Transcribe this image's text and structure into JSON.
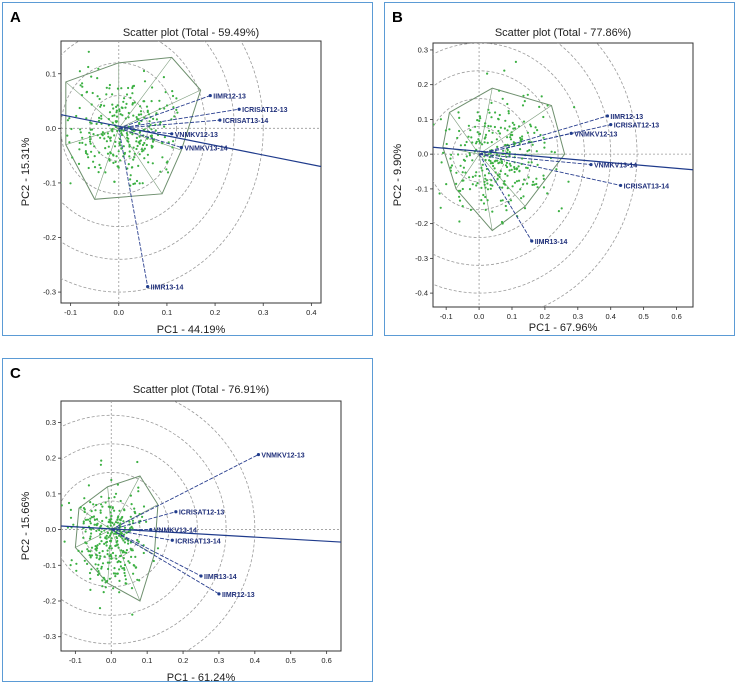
{
  "chart_data": [
    {
      "panel_label": "A",
      "type": "scatter",
      "title": "Scatter plot (Total - 59.49%)",
      "xlabel": "PC1 - 44.19%",
      "ylabel": "PC2 - 15.31%",
      "xlim": [
        -0.12,
        0.42
      ],
      "ylim": [
        -0.32,
        0.16
      ],
      "xticks": [
        "-0.1",
        "0.0",
        "0.1",
        "0.2",
        "0.3",
        "0.4"
      ],
      "yticks": [
        "0.1",
        "0.0",
        "-0.1",
        "-0.2",
        "-0.3"
      ],
      "xtick_values": [
        -0.1,
        0.0,
        0.1,
        0.2,
        0.3,
        0.4
      ],
      "ytick_values": [
        0.1,
        0.0,
        -0.1,
        -0.2,
        -0.3
      ],
      "vectors": [
        {
          "name": "IIMR12-13",
          "x": 0.19,
          "y": 0.06
        },
        {
          "name": "ICRISAT12-13",
          "x": 0.25,
          "y": 0.035
        },
        {
          "name": "ICRISAT13-14",
          "x": 0.21,
          "y": 0.015
        },
        {
          "name": "VNMKV12-13",
          "x": 0.11,
          "y": -0.01
        },
        {
          "name": "VNMKV13-14",
          "x": 0.13,
          "y": -0.035
        },
        {
          "name": "IIMR13-14",
          "x": 0.06,
          "y": -0.29
        }
      ],
      "axis_line": {
        "x1": -0.12,
        "y1": 0.025,
        "x2": 0.42,
        "y2": -0.07
      },
      "hull": [
        [
          -0.11,
          0.085
        ],
        [
          0.0,
          0.12
        ],
        [
          0.11,
          0.13
        ],
        [
          0.17,
          0.07
        ],
        [
          0.13,
          -0.04
        ],
        [
          0.09,
          -0.12
        ],
        [
          -0.05,
          -0.13
        ],
        [
          -0.11,
          -0.03
        ]
      ],
      "circle_radii": [
        0.06,
        0.12,
        0.18,
        0.24,
        0.3
      ]
    },
    {
      "panel_label": "B",
      "type": "scatter",
      "title": "Scatter plot (Total - 77.86%)",
      "xlabel": "PC1 - 67.96%",
      "ylabel": "PC2 - 9.90%",
      "xlim": [
        -0.14,
        0.65
      ],
      "ylim": [
        -0.44,
        0.32
      ],
      "xticks": [
        "-0.1",
        "0.0",
        "0.1",
        "0.2",
        "0.3",
        "0.4",
        "0.5",
        "0.6"
      ],
      "yticks": [
        "0.3",
        "0.2",
        "0.1",
        "0.0",
        "-0.1",
        "-0.2",
        "-0.3",
        "-0.4"
      ],
      "xtick_values": [
        -0.1,
        0.0,
        0.1,
        0.2,
        0.3,
        0.4,
        0.5,
        0.6
      ],
      "ytick_values": [
        0.3,
        0.2,
        0.1,
        0.0,
        -0.1,
        -0.2,
        -0.3,
        -0.4
      ],
      "vectors": [
        {
          "name": "IIMR12-13",
          "x": 0.39,
          "y": 0.11
        },
        {
          "name": "ICRISAT12-13",
          "x": 0.4,
          "y": 0.085
        },
        {
          "name": "VNMKV12-13",
          "x": 0.28,
          "y": 0.06
        },
        {
          "name": "VNMKV13-14",
          "x": 0.34,
          "y": -0.03
        },
        {
          "name": "ICRISAT13-14",
          "x": 0.43,
          "y": -0.09
        },
        {
          "name": "IIMR13-14",
          "x": 0.16,
          "y": -0.25
        }
      ],
      "axis_line": {
        "x1": -0.14,
        "y1": 0.02,
        "x2": 0.65,
        "y2": -0.045
      },
      "hull": [
        [
          -0.09,
          0.12
        ],
        [
          0.04,
          0.19
        ],
        [
          0.22,
          0.14
        ],
        [
          0.26,
          0.0
        ],
        [
          0.14,
          -0.15
        ],
        [
          0.04,
          -0.22
        ],
        [
          -0.07,
          -0.1
        ],
        [
          -0.11,
          0.02
        ]
      ],
      "circle_radii": [
        0.08,
        0.16,
        0.24,
        0.32,
        0.4,
        0.48
      ]
    },
    {
      "panel_label": "C",
      "type": "scatter",
      "title": "Scatter plot (Total - 76.91%)",
      "xlabel": "PC1 - 61.24%",
      "ylabel": "PC2 - 15.66%",
      "xlim": [
        -0.14,
        0.64
      ],
      "ylim": [
        -0.34,
        0.36
      ],
      "xticks": [
        "-0.1",
        "0.0",
        "0.1",
        "0.2",
        "0.3",
        "0.4",
        "0.5",
        "0.6"
      ],
      "yticks": [
        "0.3",
        "0.2",
        "0.1",
        "0.0",
        "-0.1",
        "-0.2",
        "-0.3"
      ],
      "xtick_values": [
        -0.1,
        0.0,
        0.1,
        0.2,
        0.3,
        0.4,
        0.5,
        0.6
      ],
      "ytick_values": [
        0.3,
        0.2,
        0.1,
        0.0,
        -0.1,
        -0.2,
        -0.3
      ],
      "vectors": [
        {
          "name": "VNMKV12-13",
          "x": 0.41,
          "y": 0.21
        },
        {
          "name": "ICRISAT12-13",
          "x": 0.18,
          "y": 0.05
        },
        {
          "name": "VNMKV13-14",
          "x": 0.11,
          "y": 0.0
        },
        {
          "name": "ICRISAT13-14",
          "x": 0.17,
          "y": -0.03
        },
        {
          "name": "IIMR13-14",
          "x": 0.25,
          "y": -0.13
        },
        {
          "name": "IIMR12-13",
          "x": 0.3,
          "y": -0.18
        }
      ],
      "axis_line": {
        "x1": -0.14,
        "y1": 0.01,
        "x2": 0.64,
        "y2": -0.035
      },
      "hull": [
        [
          -0.09,
          0.06
        ],
        [
          -0.01,
          0.12
        ],
        [
          0.08,
          0.15
        ],
        [
          0.13,
          0.07
        ],
        [
          0.12,
          -0.07
        ],
        [
          0.08,
          -0.2
        ],
        [
          -0.01,
          -0.15
        ],
        [
          -0.1,
          -0.05
        ]
      ],
      "circle_radii": [
        0.08,
        0.16,
        0.24,
        0.32,
        0.4
      ]
    }
  ]
}
